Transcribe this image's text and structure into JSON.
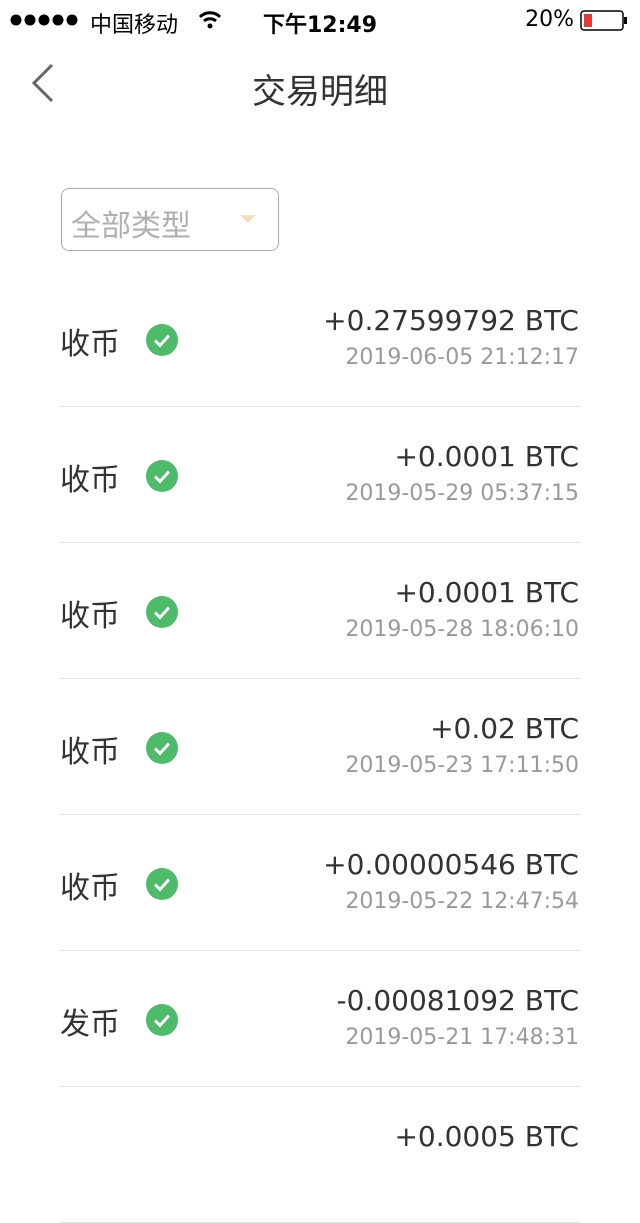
{
  "status_bar": {
    "carrier": "中国移动",
    "time": "下午12:49",
    "battery": "20%"
  },
  "header": {
    "title": "交易明细"
  },
  "filter": {
    "label": "全部类型"
  },
  "rows": [
    {
      "type": "收币",
      "amount": "+0.27599792 BTC",
      "time": "2019-06-05 21:12:17"
    },
    {
      "type": "收币",
      "amount": "+0.0001 BTC",
      "time": "2019-05-29 05:37:15"
    },
    {
      "type": "收币",
      "amount": "+0.0001 BTC",
      "time": "2019-05-28 18:06:10"
    },
    {
      "type": "收币",
      "amount": "+0.02 BTC",
      "time": "2019-05-23 17:11:50"
    },
    {
      "type": "收币",
      "amount": "+0.00000546 BTC",
      "time": "2019-05-22 12:47:54"
    },
    {
      "type": "发币",
      "amount": "-0.00081092 BTC",
      "time": "2019-05-21 17:48:31"
    },
    {
      "amount": "+0.0005 BTC"
    }
  ]
}
